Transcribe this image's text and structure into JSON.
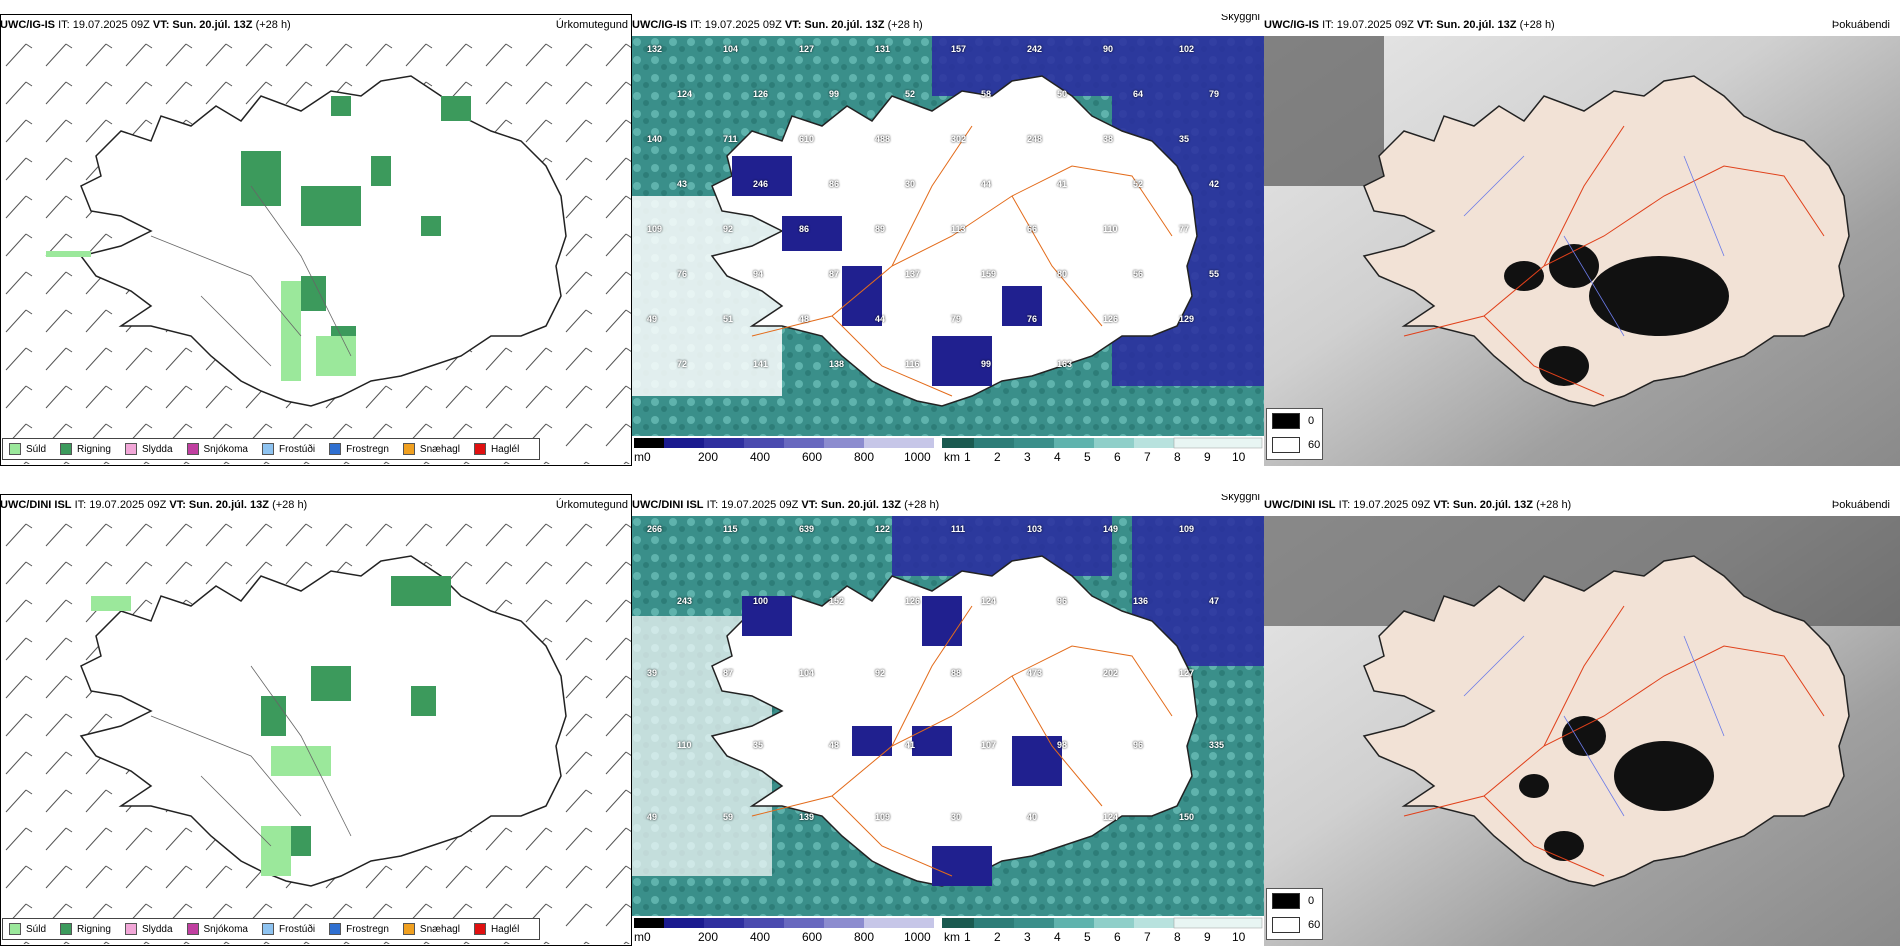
{
  "panels": [
    {
      "model": "UWC/IG-IS",
      "it": "IT: 19.07.2025 09Z",
      "vt": "VT: Sun. 20.júl. 13Z",
      "lead": "(+28 h)",
      "title": "Úrkomutegund",
      "legend": [
        "Súld",
        "Rigning",
        "Slydda",
        "Snjókoma",
        "Frostúði",
        "Frostregn",
        "Snæhagl",
        "Haglél"
      ]
    },
    {
      "model": "UWC/IG-IS",
      "it": "IT: 19.07.2025 09Z",
      "vt": "VT: Sun. 20.júl. 13Z",
      "lead": "(+28 h)",
      "title": "Skyggni",
      "cloud_labels": [
        "132",
        "104",
        "127",
        "131",
        "157",
        "242",
        "90",
        "102",
        "124",
        "126",
        "99",
        "52",
        "58",
        "50",
        "64",
        "79",
        "140",
        "711",
        "610",
        "488",
        "302",
        "248",
        "38",
        "35",
        "43",
        "246",
        "86",
        "30",
        "44",
        "41",
        "52",
        "42",
        "109",
        "92",
        "86",
        "89",
        "113",
        "66",
        "110",
        "77",
        "76",
        "94",
        "87",
        "137",
        "159",
        "80",
        "56",
        "55",
        "49",
        "51",
        "48",
        "44",
        "79",
        "76",
        "126",
        "129",
        "72",
        "141",
        "138",
        "116",
        "99",
        "163"
      ],
      "elev_label": "m",
      "elev_ticks": [
        "0",
        "200",
        "400",
        "600",
        "800",
        "1000"
      ],
      "vis_label": "km",
      "vis_ticks": [
        "1",
        "2",
        "3",
        "4",
        "5",
        "6",
        "7",
        "8",
        "9",
        "10"
      ]
    },
    {
      "model": "UWC/IG-IS",
      "it": "IT: 19.07.2025 09Z",
      "vt": "VT: Sun. 20.júl. 13Z",
      "lead": "(+28 h)",
      "title": "Þokuábendi",
      "fog_legend": [
        "0",
        "60"
      ]
    },
    {
      "model": "UWC/DINI ISL",
      "it": "IT: 19.07.2025 09Z",
      "vt": "VT: Sun. 20.júl. 13Z",
      "lead": "(+28 h)",
      "title": "Úrkomutegund",
      "legend": [
        "Súld",
        "Rigning",
        "Slydda",
        "Snjókoma",
        "Frostúði",
        "Frostregn",
        "Snæhagl",
        "Haglél"
      ]
    },
    {
      "model": "UWC/DINI ISL",
      "it": "IT: 19.07.2025 09Z",
      "vt": "VT: Sun. 20.júl. 13Z",
      "lead": "(+28 h)",
      "title": "Skyggni",
      "cloud_labels": [
        "266",
        "115",
        "639",
        "122",
        "111",
        "103",
        "149",
        "109",
        "243",
        "100",
        "152",
        "126",
        "124",
        "96",
        "136",
        "47",
        "39",
        "87",
        "104",
        "92",
        "88",
        "473",
        "202",
        "127",
        "110",
        "35",
        "48",
        "41",
        "107",
        "98",
        "96",
        "335",
        "49",
        "59",
        "139",
        "109",
        "30",
        "40",
        "124",
        "150"
      ],
      "elev_label": "m",
      "elev_ticks": [
        "0",
        "200",
        "400",
        "600",
        "800",
        "1000"
      ],
      "vis_label": "km",
      "vis_ticks": [
        "1",
        "2",
        "3",
        "4",
        "5",
        "6",
        "7",
        "8",
        "9",
        "10"
      ]
    },
    {
      "model": "UWC/DINI ISL",
      "it": "IT: 19.07.2025 09Z",
      "vt": "VT: Sun. 20.júl. 13Z",
      "lead": "(+28 h)",
      "title": "Þokuábendi",
      "fog_legend": [
        "0",
        "60"
      ]
    }
  ],
  "colors": {
    "legend": [
      "#9be89b",
      "#3c9a5c",
      "#f2a7d8",
      "#c03fa0",
      "#8ec3f0",
      "#2f6fd0",
      "#f0a020",
      "#e01010"
    ],
    "sea_fog": "#3a8f8a",
    "low_cloud": "#20208f",
    "land_fog": "#f2e2d6",
    "roads": "#e36b1a"
  }
}
